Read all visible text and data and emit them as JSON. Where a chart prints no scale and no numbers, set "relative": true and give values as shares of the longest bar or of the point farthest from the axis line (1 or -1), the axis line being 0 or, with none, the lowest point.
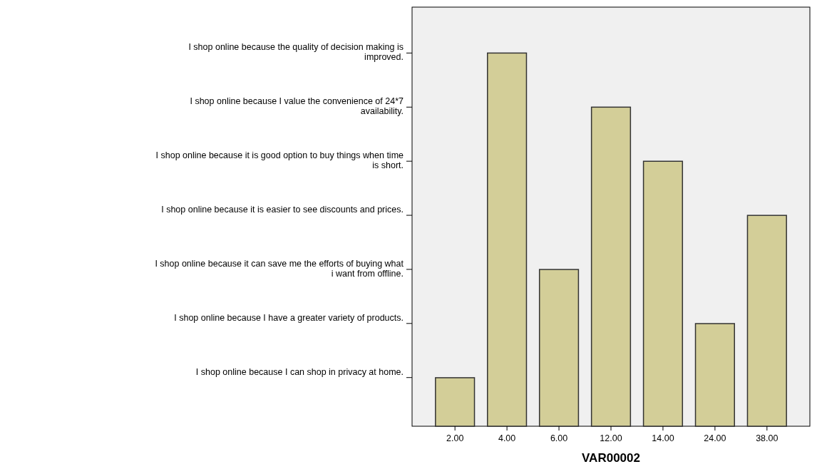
{
  "chart_data": {
    "type": "bar",
    "xlabel": "VAR00002",
    "categories": [
      "2.00",
      "4.00",
      "6.00",
      "12.00",
      "14.00",
      "24.00",
      "38.00"
    ],
    "values": [
      0.13,
      1,
      0.42,
      0.855,
      0.71,
      0.275,
      0.565
    ],
    "relative": true,
    "color": "#d3ce98",
    "annotations": [
      "I shop online because the quality of decision making is improved.",
      "I shop online because I value the convenience of 24*7 availability.",
      "I shop online because it is good option to buy things when time is short.",
      "I shop online because it is easier to see discounts and prices.",
      "I shop online because it can save me the efforts of buying what i want from offline.",
      "I shop online because I have a greater variety of products.",
      "I shop online because I can shop in privacy at home."
    ]
  }
}
